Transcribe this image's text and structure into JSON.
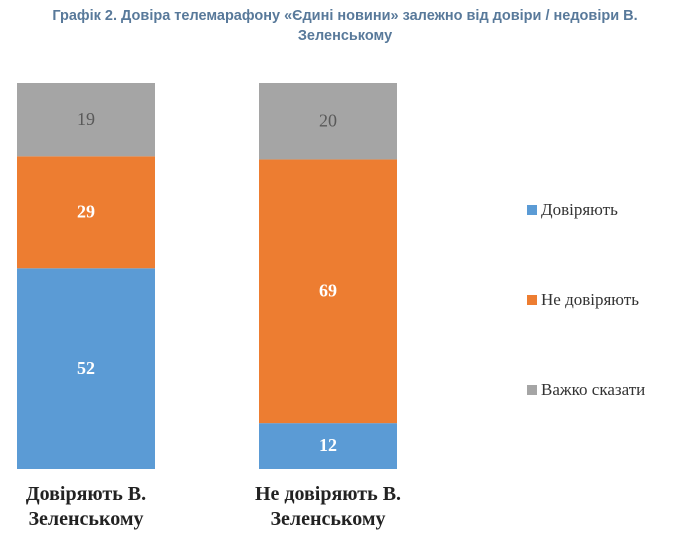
{
  "chart_data": {
    "type": "stacked_bar",
    "title": "Графік 2. Довіра телемарафону «Єдині новини» залежно від довіри / недовіри В. Зеленському",
    "categories": [
      "Довіряють В. Зеленському",
      "Не довіряють В. Зеленському"
    ],
    "series": [
      {
        "name": "Довіряють",
        "color": "#5b9bd5",
        "values": [
          52,
          12
        ]
      },
      {
        "name": "Не довіряють",
        "color": "#ed7d31",
        "values": [
          29,
          69
        ]
      },
      {
        "name": "Важко сказати",
        "color": "#a5a5a5",
        "values": [
          19,
          20
        ]
      }
    ],
    "legend": "right"
  }
}
